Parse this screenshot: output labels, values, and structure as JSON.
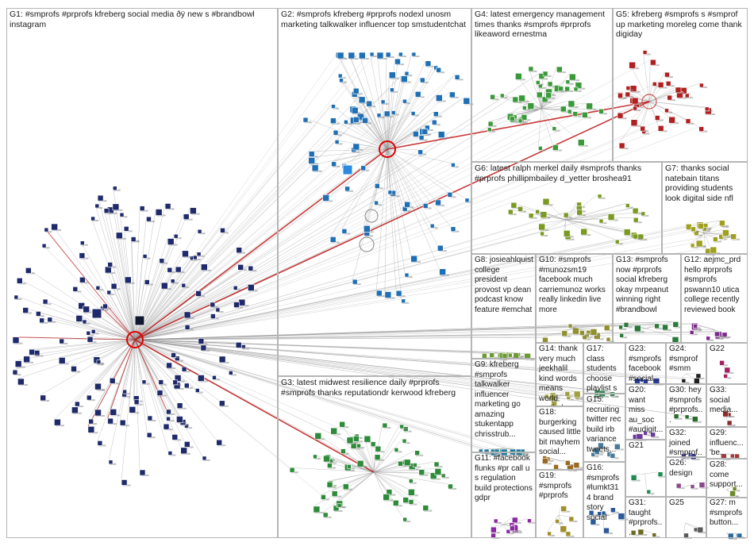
{
  "groups": [
    {
      "id": "G1",
      "label": "G1: #smprofs #prprofs kfreberg social media ðÿ new s #brandbowl instagram"
    },
    {
      "id": "G2",
      "label": "G2: #smprofs kfreberg #prprofs nodexl unosm marketing talkwalker influencer top smstudentchat"
    },
    {
      "id": "G3",
      "label": "G3: latest midwest resilience daily #prprofs #smprofs thanks reputationdr kerwood kfreberg"
    },
    {
      "id": "G4",
      "label": "G4: latest emergency management times thanks #smprofs #prprofs likeaword ernestma"
    },
    {
      "id": "G5",
      "label": "G5: kfreberg #smprofs s #smprof up marketing moreleg come thank digiday"
    },
    {
      "id": "G6",
      "label": "G6: latest ralph merkel daily #smprofs thanks #prprofs phillipmbailey d_yetter broshea91"
    },
    {
      "id": "G7",
      "label": "G7: thanks social natebain titans providing students look digital side nfl"
    },
    {
      "id": "G8",
      "label": "G8: josieahlquist college president provost vp dean podcast know feature #emchat"
    },
    {
      "id": "G9",
      "label": "G9: kfreberg #smprofs talkwalker influencer marketing go amazing stukentapp chrisstrub..."
    },
    {
      "id": "G10",
      "label": "G10: #smprofs #munozsm19 facebook much carriemunoz works really linkedin live more"
    },
    {
      "id": "G11",
      "label": "G11: #facebook flunks #pr call u s regulation build protections gdpr"
    },
    {
      "id": "G12",
      "label": "G12: aejmc_prd hello #prprofs #smprofs pswann10 utica college recently reviewed book"
    },
    {
      "id": "G13",
      "label": "G13: #smprofs now #prprofs social kfreberg okay mrpeanut winning right #brandbowl"
    },
    {
      "id": "G14",
      "label": "G14: thank very much jeekhalil kind words means world routledge..."
    },
    {
      "id": "G15",
      "label": "G15: recruiting twitter rec build irb variance tweets..."
    },
    {
      "id": "G16",
      "label": "G16: #smprofs #lumkt314 brand story social"
    },
    {
      "id": "G17",
      "label": "G17: class students choose playlist s code..."
    },
    {
      "id": "G18",
      "label": "G18: burgerking caused little bit mayhem social..."
    },
    {
      "id": "G19",
      "label": "G19: #smprofs #prprofs"
    },
    {
      "id": "G20",
      "label": "G20: want miss au_soc #audigit..."
    },
    {
      "id": "G21",
      "label": "G21"
    },
    {
      "id": "G22",
      "label": "G22"
    },
    {
      "id": "G23",
      "label": "G23: #smprofs facebook #social..."
    },
    {
      "id": "G24",
      "label": "G24: #smprof #smm"
    },
    {
      "id": "G25",
      "label": "G25"
    },
    {
      "id": "G26",
      "label": "G26: design"
    },
    {
      "id": "G27",
      "label": "G27: m #smprofs button..."
    },
    {
      "id": "G28",
      "label": "G28: come support..."
    },
    {
      "id": "G29",
      "label": "G29: influenc... 'be..."
    },
    {
      "id": "G30",
      "label": "G30: hey #smprofs #prprofs..."
    },
    {
      "id": "G31",
      "label": "G31: taught #prprofs..."
    },
    {
      "id": "G32",
      "label": "G32: joined #smprof..."
    },
    {
      "id": "G33",
      "label": "G33: social media..."
    }
  ],
  "node_counts": {
    "G1": 150,
    "G2": 95,
    "G3": 60,
    "G4": 45,
    "G5": 35,
    "G6": 28,
    "G7": 20,
    "G8": 14,
    "G9": 14,
    "G10": 12,
    "G11": 10,
    "G12": 10,
    "G13": 8,
    "G14": 8,
    "G15": 7,
    "G16": 7,
    "G17": 6,
    "G18": 7,
    "G19": 6,
    "G20": 4,
    "G21": 3,
    "G22": 3,
    "G23": 4,
    "G24": 3,
    "G25": 3,
    "G26": 3,
    "G27": 3,
    "G28": 3,
    "G29": 3,
    "G30": 3,
    "G31": 3,
    "G32": 3,
    "G33": 3
  },
  "colors": {
    "G1": "#1f2a6b",
    "G2": "#1f6fb5",
    "G3": "#2e8b3a",
    "G4": "#3a9a3a",
    "G5": "#b02020",
    "G6": "#7a9a20",
    "G7": "#a0a020",
    "G8": "#6a9a30",
    "G9": "#207a9a",
    "G10": "#909030",
    "G11": "#8a2aa0",
    "G12": "#7a2a8a",
    "G13": "#2a7a3a",
    "G14": "#a0a040",
    "G15": "#4a7a9a",
    "G16": "#2a5a9a",
    "G17": "#3a8a5a",
    "G18": "#9a6a20",
    "G19": "#a0902a",
    "G20": "#6a3a9a",
    "G21": "#208a50",
    "G22": "#a02060",
    "G23": "#2a3a9a",
    "G24": "#202020",
    "G25": "#5a5a5a",
    "G26": "#8a4a8a",
    "G27": "#2a6a9a",
    "G28": "#6a8a2a",
    "G29": "#a03a3a",
    "G30": "#2a6a2a",
    "G31": "#6a6a20",
    "G32": "#3a3a8a",
    "G33": "#8a2a2a",
    "edge": "#9a9a9a",
    "edge_strong": "#c01818",
    "hub": "#e00000"
  }
}
